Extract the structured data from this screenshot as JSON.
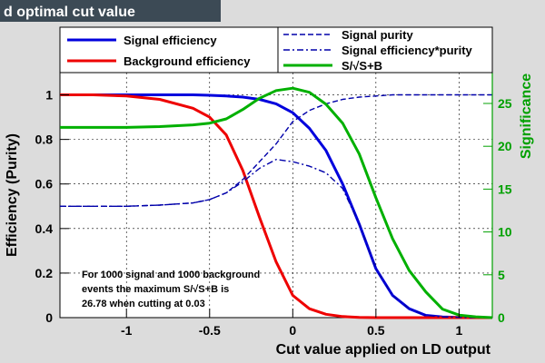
{
  "header": {
    "title": "d optimal cut value"
  },
  "chart_data": {
    "type": "line",
    "xlabel": "Cut value applied on LD output",
    "ylabel": "Efficiency (Purity)",
    "ylabel_right": "Significance",
    "xlim": [
      -1.4,
      1.2
    ],
    "ylim": [
      0,
      1.1
    ],
    "ylim_right": [
      0,
      28.6
    ],
    "x_ticks": [
      "-1",
      "-0.5",
      "0",
      "0.5",
      "1"
    ],
    "x_tick_values": [
      -1,
      -0.5,
      0,
      0.5,
      1
    ],
    "y_ticks": [
      "0",
      "0.2",
      "0.4",
      "0.6",
      "0.8",
      "1"
    ],
    "y_tick_values": [
      0,
      0.2,
      0.4,
      0.6,
      0.8,
      1
    ],
    "y_right_ticks": [
      "0",
      "5",
      "10",
      "15",
      "20",
      "25"
    ],
    "y_right_tick_values": [
      0,
      5,
      10,
      15,
      20,
      25
    ],
    "grid": true,
    "legend_placement": "top",
    "x": [
      -1.4,
      -1.2,
      -1.0,
      -0.8,
      -0.6,
      -0.5,
      -0.4,
      -0.3,
      -0.2,
      -0.1,
      0.0,
      0.1,
      0.2,
      0.3,
      0.4,
      0.5,
      0.6,
      0.7,
      0.8,
      0.9,
      1.0,
      1.1,
      1.2
    ],
    "series": [
      {
        "name": "Signal efficiency",
        "axis": "left",
        "color": "#0000dd",
        "dash": "solid",
        "values": [
          1.0,
          1.0,
          1.0,
          1.0,
          1.0,
          0.998,
          0.995,
          0.99,
          0.98,
          0.96,
          0.92,
          0.85,
          0.75,
          0.6,
          0.42,
          0.22,
          0.1,
          0.04,
          0.01,
          0.003,
          0.001,
          0.0,
          0.0
        ]
      },
      {
        "name": "Background efficiency",
        "axis": "left",
        "color": "#ee0000",
        "dash": "solid",
        "values": [
          1.0,
          1.0,
          0.995,
          0.98,
          0.94,
          0.9,
          0.82,
          0.66,
          0.45,
          0.25,
          0.1,
          0.04,
          0.015,
          0.005,
          0.001,
          0.0,
          0.0,
          0.0,
          0.0,
          0.0,
          0.0,
          0.0,
          0.0
        ]
      },
      {
        "name": "Signal purity",
        "axis": "left",
        "color": "#0000aa",
        "dash": "dash",
        "values": [
          0.5,
          0.5,
          0.5,
          0.505,
          0.515,
          0.53,
          0.56,
          0.62,
          0.7,
          0.78,
          0.88,
          0.93,
          0.96,
          0.98,
          0.99,
          0.995,
          1.0,
          1.0,
          1.0,
          1.0,
          1.0,
          1.0,
          1.0
        ]
      },
      {
        "name": "Signal efficiency*purity",
        "axis": "left",
        "color": "#0000aa",
        "dash": "dashdot",
        "values": [
          0.5,
          0.5,
          0.5,
          0.505,
          0.515,
          0.53,
          0.56,
          0.61,
          0.67,
          0.71,
          0.7,
          0.68,
          0.65,
          0.58,
          0.42,
          0.22,
          0.1,
          0.04,
          0.01,
          0.003,
          0.001,
          0.0,
          0.0
        ]
      },
      {
        "name": "S/√S+B",
        "axis": "right",
        "color": "#00b000",
        "dash": "solid",
        "values": [
          22.2,
          22.2,
          22.2,
          22.3,
          22.5,
          22.7,
          23.2,
          24.3,
          25.6,
          26.5,
          26.78,
          26.3,
          24.9,
          22.7,
          19.1,
          14.0,
          9.2,
          5.5,
          3.0,
          1.0,
          0.3,
          0.1,
          0.0
        ]
      }
    ],
    "annotation": [
      "For 1000 signal and 1000 background",
      "events the maximum S/√S+B  is",
      "26.78 when cutting at 0.03"
    ]
  }
}
